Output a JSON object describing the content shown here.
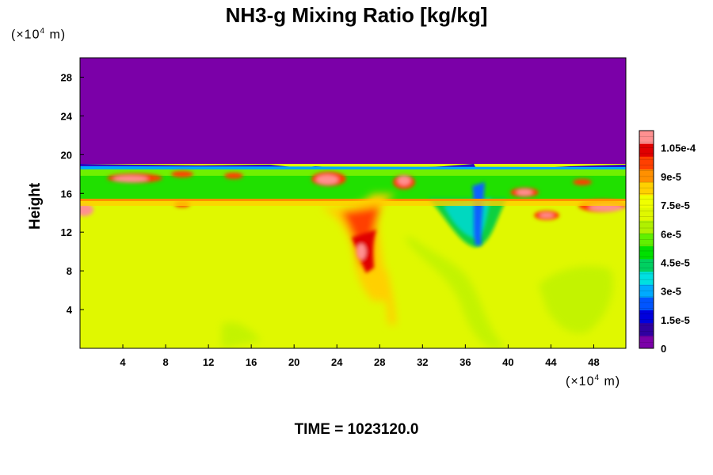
{
  "chart_data": {
    "type": "heatmap",
    "title": "NH3-g Mixing Ratio [kg/kg]",
    "ylabel": "Height",
    "x_unit": "(×10",
    "x_unit_exp": "4",
    "x_unit_tail": " m)",
    "y_unit": "(×10",
    "y_unit_exp": "4",
    "y_unit_tail": " m)",
    "x_ticks": [
      "4",
      "8",
      "12",
      "16",
      "20",
      "24",
      "28",
      "32",
      "36",
      "40",
      "44",
      "48"
    ],
    "x_tick_values": [
      4,
      8,
      12,
      16,
      20,
      24,
      28,
      32,
      36,
      40,
      44,
      48
    ],
    "xlim": [
      0,
      51
    ],
    "y_ticks": [
      "4",
      "8",
      "12",
      "16",
      "20",
      "24",
      "28"
    ],
    "y_tick_values": [
      4,
      8,
      12,
      16,
      20,
      24,
      28
    ],
    "ylim": [
      0,
      30
    ],
    "colorbar_labels": [
      "1.05e-4",
      "9e-5",
      "7.5e-5",
      "6e-5",
      "4.5e-5",
      "3e-5",
      "1.5e-5",
      "0"
    ],
    "colorbar_values": [
      0.000105,
      9e-05,
      7.5e-05,
      6e-05,
      4.5e-05,
      3e-05,
      1.5e-05,
      0
    ],
    "colorbar_range": [
      0,
      0.000114
    ],
    "field_description_values": {
      "background_low": 7.8e-05,
      "upper_layer": 0,
      "layer_top_height": 18.5,
      "inversion_height": 15.5
    },
    "colors": [
      "#7b00a8",
      "#3000a0",
      "#0000dd",
      "#0055ff",
      "#00aaff",
      "#00e0e0",
      "#00d060",
      "#00e000",
      "#60f000",
      "#b0f000",
      "#e0f800",
      "#f0ff00",
      "#ffd000",
      "#ff9000",
      "#ff4000",
      "#e00000",
      "#ff9090"
    ]
  },
  "time_label": "TIME = 1023120.0"
}
